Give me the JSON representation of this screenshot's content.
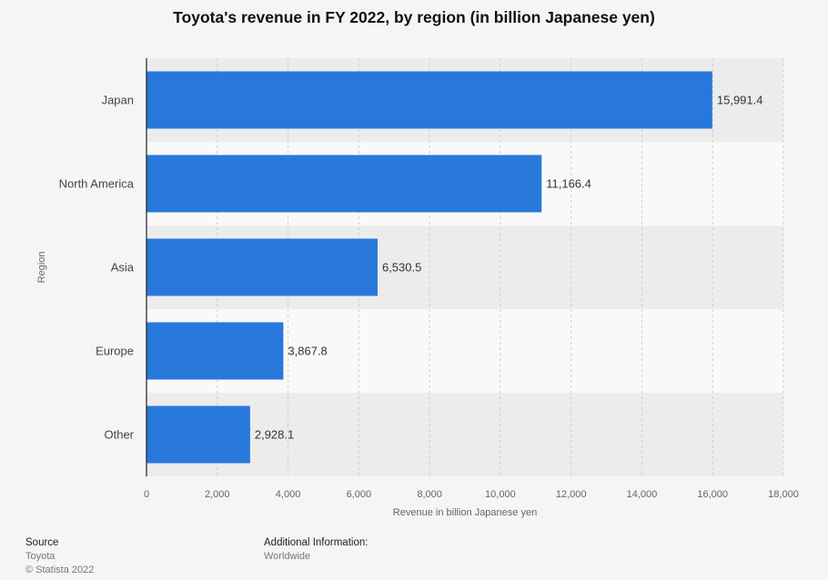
{
  "title": "Toyota's revenue in FY 2022, by region (in billion Japanese yen)",
  "colors": {
    "bar": "#2878dc",
    "band": "#ececec",
    "axis": "#222222"
  },
  "chart_data": {
    "type": "bar",
    "orientation": "horizontal",
    "categories": [
      "Japan",
      "North America",
      "Asia",
      "Europe",
      "Other"
    ],
    "values": [
      15991.4,
      11166.4,
      6530.5,
      3867.8,
      2928.1
    ],
    "value_labels": [
      "15,991.4",
      "11,166.4",
      "6,530.5",
      "3,867.8",
      "2,928.1"
    ],
    "xlabel": "Revenue in billion Japanese yen",
    "ylabel": "Region",
    "xlim": [
      0,
      18000
    ],
    "xticks": [
      0,
      2000,
      4000,
      6000,
      8000,
      10000,
      12000,
      14000,
      16000,
      18000
    ],
    "xtick_labels": [
      "0",
      "2,000",
      "4,000",
      "6,000",
      "8,000",
      "10,000",
      "12,000",
      "14,000",
      "16,000",
      "18,000"
    ],
    "grid": true
  },
  "footer": {
    "source_heading": "Source",
    "source": "Toyota",
    "copyright": "© Statista 2022",
    "additional_heading": "Additional Information:",
    "additional": "Worldwide"
  }
}
